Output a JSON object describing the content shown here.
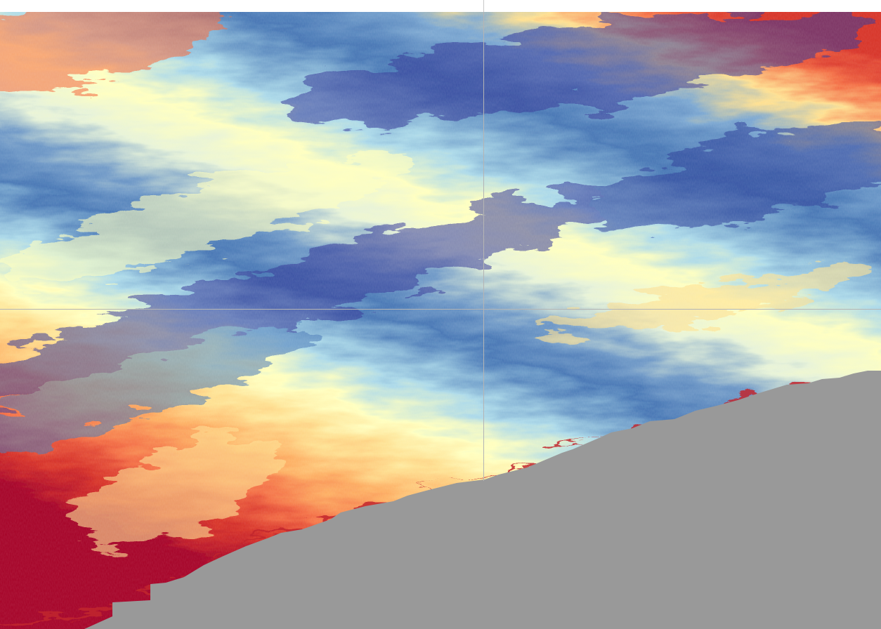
{
  "colors": {
    "page_background": "#ffffff",
    "land_mask": "#999999",
    "gridline": "#b4b4b4",
    "colormap": [
      "#313695",
      "#4575b4",
      "#74add1",
      "#abd9e9",
      "#e0f3f8",
      "#ffffbf",
      "#fee090",
      "#fdae61",
      "#f46d43",
      "#d73027",
      "#a50026"
    ]
  },
  "layers": {
    "data_raster": "diverging-colormap-swath",
    "mask": "land-mask",
    "graticule": "lat-lon-gridlines"
  }
}
